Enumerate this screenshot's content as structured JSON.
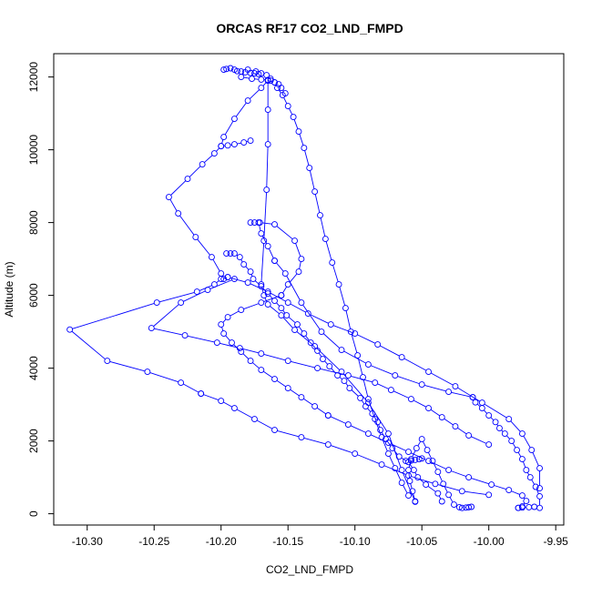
{
  "chart_data": {
    "type": "scatter",
    "title": "ORCAS RF17 CO2_LND_FMPD",
    "xlabel": "CO2_LND_FMPD",
    "ylabel": "Altitude (m)",
    "xlim": [
      -10.325,
      -9.944
    ],
    "ylim": [
      -310,
      12640
    ],
    "x_ticks": [
      -10.3,
      -10.25,
      -10.2,
      -10.15,
      -10.1,
      -10.05,
      -10.0,
      -9.95
    ],
    "x_tick_labels": [
      "-10.30",
      "-10.25",
      "-10.20",
      "-10.15",
      "-10.10",
      "-10.05",
      "-10.00",
      "-9.95"
    ],
    "y_ticks": [
      0,
      2000,
      4000,
      6000,
      8000,
      10000,
      12000
    ],
    "y_tick_labels": [
      "0",
      "2000",
      "4000",
      "6000",
      "8000",
      "10000",
      "12000"
    ],
    "grid": false,
    "legend": "none",
    "series_color": "#0000ff",
    "series": [
      {
        "x": [
          -10.055,
          -10.057,
          -10.059,
          -10.06,
          -10.058,
          -10.054,
          -10.05,
          -10.046,
          -10.042,
          -10.038,
          -10.034,
          -10.03,
          -10.026,
          -10.022
        ],
        "y": [
          340,
          620,
          900,
          1200,
          1500,
          1800,
          2050,
          1750,
          1450,
          1150,
          820,
          520,
          250,
          180
        ]
      },
      {
        "x": [
          -10.035,
          -10.038,
          -10.047,
          -10.053,
          -10.056,
          -10.06,
          -10.067,
          -10.072,
          -10.077,
          -10.081,
          -10.083,
          -10.087,
          -10.092,
          -10.096,
          -10.104,
          -10.108,
          -10.113,
          -10.119,
          -10.124,
          -10.128,
          -10.133,
          -10.138,
          -10.143,
          -10.151,
          -10.155,
          -10.16,
          -10.165,
          -10.17,
          -10.176,
          -10.178,
          -10.183,
          -10.186,
          -10.19,
          -10.193,
          -10.196
        ],
        "y": [
          340,
          560,
          800,
          1000,
          1200,
          1420,
          1570,
          1800,
          2050,
          2300,
          2520,
          2750,
          2950,
          3180,
          3450,
          3650,
          3800,
          4050,
          4250,
          4480,
          4700,
          4950,
          5200,
          5450,
          5650,
          5850,
          6050,
          6250,
          6450,
          6650,
          6850,
          7050,
          7150,
          7150,
          7150
        ]
      },
      {
        "x": [
          -10.18,
          -10.174,
          -10.17,
          -10.166,
          -10.163,
          -10.16,
          -10.158,
          -10.154,
          -10.15,
          -10.146,
          -10.142,
          -10.138,
          -10.134,
          -10.13,
          -10.126,
          -10.122,
          -10.117,
          -10.112,
          -10.107,
          -10.103,
          -10.098,
          -10.094,
          -10.09,
          -10.085,
          -10.08,
          -10.075,
          -10.07,
          -10.065,
          -10.06
        ],
        "y": [
          12200,
          12150,
          12100,
          12050,
          11950,
          11850,
          11700,
          11500,
          11200,
          10900,
          10500,
          10050,
          9500,
          8850,
          8200,
          7550,
          6900,
          6300,
          5650,
          5000,
          4350,
          3750,
          3150,
          2600,
          2100,
          1650,
          1250,
          850,
          500
        ]
      },
      {
        "x": [
          -10.055,
          -10.065,
          -10.075,
          -10.09,
          -10.11,
          -10.13,
          -10.145,
          -10.155,
          -10.165,
          -10.168,
          -10.17,
          -10.168,
          -10.166,
          -10.165,
          -10.165,
          -10.165
        ],
        "y": [
          330,
          1200,
          2200,
          3050,
          3900,
          4600,
          5050,
          5450,
          5750,
          6000,
          6300,
          7500,
          8900,
          10150,
          11100,
          11900
        ]
      },
      {
        "x": [
          -10.165,
          -10.17,
          -10.18,
          -10.19,
          -10.198,
          -10.2,
          -10.205,
          -10.214,
          -10.225,
          -10.239,
          -10.232,
          -10.219,
          -10.207,
          -10.2,
          -10.198
        ],
        "y": [
          11900,
          11700,
          11350,
          10850,
          10350,
          10100,
          9900,
          9600,
          9200,
          8700,
          8250,
          7600,
          7050,
          6600,
          6450
        ]
      },
      {
        "x": [
          -10.19,
          -10.21,
          -10.23,
          -10.252,
          -10.227,
          -10.203,
          -10.186,
          -10.17,
          -10.15,
          -10.128,
          -10.105,
          -10.085,
          -10.073,
          -10.058,
          -10.045,
          -10.035,
          -10.025,
          -10.015,
          -10.0
        ],
        "y": [
          6450,
          6150,
          5800,
          5100,
          4900,
          4700,
          4550,
          4400,
          4200,
          4000,
          3800,
          3600,
          3400,
          3150,
          2900,
          2650,
          2400,
          2150,
          1900
        ]
      },
      {
        "x": [
          -10.0,
          -10.02,
          -10.04,
          -10.06,
          -10.08,
          -10.1,
          -10.12,
          -10.14,
          -10.16,
          -10.175,
          -10.19,
          -10.2,
          -10.215
        ],
        "y": [
          520,
          620,
          820,
          1050,
          1350,
          1650,
          1900,
          2100,
          2300,
          2600,
          2900,
          3100,
          3300
        ]
      },
      {
        "x": [
          -10.215,
          -10.23,
          -10.255,
          -10.285,
          -10.313,
          -10.248,
          -10.218,
          -10.205,
          -10.2,
          -10.195
        ],
        "y": [
          3300,
          3600,
          3900,
          4200,
          5060,
          5800,
          6100,
          6300,
          6450,
          6500
        ]
      },
      {
        "x": [
          -10.195,
          -10.18,
          -10.165,
          -10.15,
          -10.135,
          -10.118,
          -10.1,
          -10.083,
          -10.065,
          -10.045,
          -10.025,
          -10.005,
          -9.985,
          -9.975,
          -9.968,
          -9.962,
          -9.962
        ],
        "y": [
          6500,
          6350,
          6100,
          5800,
          5500,
          5200,
          4950,
          4650,
          4300,
          3900,
          3500,
          3050,
          2600,
          2200,
          1750,
          1250,
          700
        ]
      },
      {
        "x": [
          -9.962,
          -9.962,
          -9.965,
          -9.969,
          -9.972,
          -9.975,
          -9.979,
          -9.983,
          -9.988,
          -9.992,
          -9.995,
          -10.0,
          -10.005,
          -10.01,
          -10.012
        ],
        "y": [
          160,
          480,
          740,
          1000,
          1200,
          1500,
          1750,
          2000,
          2200,
          2350,
          2520,
          2700,
          2900,
          3060,
          3200
        ]
      },
      {
        "x": [
          -10.012,
          -10.03,
          -10.05,
          -10.07,
          -10.09,
          -10.11,
          -10.125,
          -10.14,
          -10.152,
          -10.16
        ],
        "y": [
          3200,
          3350,
          3550,
          3800,
          4100,
          4500,
          5000,
          5800,
          6600,
          6950
        ]
      },
      {
        "x": [
          -10.16,
          -10.165,
          -10.17,
          -10.172,
          -10.175,
          -10.178
        ],
        "y": [
          6950,
          7350,
          7700,
          8000,
          8000,
          8000
        ]
      },
      {
        "x": [
          -10.171,
          -10.16,
          -10.145,
          -10.14,
          -10.142,
          -10.15,
          -10.155
        ],
        "y": [
          8000,
          7950,
          7500,
          7000,
          6650,
          6300,
          6000
        ]
      },
      {
        "x": [
          -10.155,
          -10.17,
          -10.185,
          -10.195,
          -10.2,
          -10.198,
          -10.192,
          -10.185,
          -10.178,
          -10.17,
          -10.16,
          -10.15,
          -10.14,
          -10.13,
          -10.12
        ],
        "y": [
          6000,
          5800,
          5600,
          5400,
          5200,
          4950,
          4700,
          4450,
          4200,
          3950,
          3700,
          3450,
          3200,
          2950,
          2700
        ]
      },
      {
        "x": [
          -10.12,
          -10.105,
          -10.09,
          -10.075,
          -10.06,
          -10.045,
          -10.03,
          -10.015,
          -9.998,
          -9.985,
          -9.975,
          -9.972,
          -9.975,
          -9.978
        ],
        "y": [
          2700,
          2450,
          2200,
          1950,
          1700,
          1450,
          1200,
          1000,
          800,
          650,
          500,
          350,
          200,
          160
        ]
      },
      {
        "x": [
          -10.198,
          -10.196,
          -10.193,
          -10.19,
          -10.188,
          -10.185,
          -10.182,
          -10.178,
          -10.175,
          -10.172
        ],
        "y": [
          12200,
          12220,
          12240,
          12200,
          12160,
          12150,
          12130,
          12110,
          12100,
          12080
        ]
      },
      {
        "x": [
          -10.185,
          -10.177,
          -10.17,
          -10.165,
          -10.163,
          -10.16,
          -10.157,
          -10.155,
          -10.152
        ],
        "y": [
          12000,
          11950,
          11930,
          11920,
          11900,
          11850,
          11800,
          11700,
          11550
        ]
      },
      {
        "x": [
          -10.2,
          -10.195,
          -10.19,
          -10.183,
          -10.178
        ],
        "y": [
          10100,
          10120,
          10150,
          10200,
          10250
        ]
      },
      {
        "x": [
          -10.062,
          -10.058,
          -10.055,
          -10.052,
          -10.05
        ],
        "y": [
          1450,
          1460,
          1480,
          1500,
          1520
        ]
      },
      {
        "x": [
          -10.02,
          -10.017,
          -10.015,
          -10.013
        ],
        "y": [
          160,
          170,
          180,
          190
        ]
      },
      {
        "x": [
          -9.978,
          -9.975,
          -9.97,
          -9.966
        ],
        "y": [
          160,
          170,
          180,
          190
        ]
      }
    ]
  }
}
